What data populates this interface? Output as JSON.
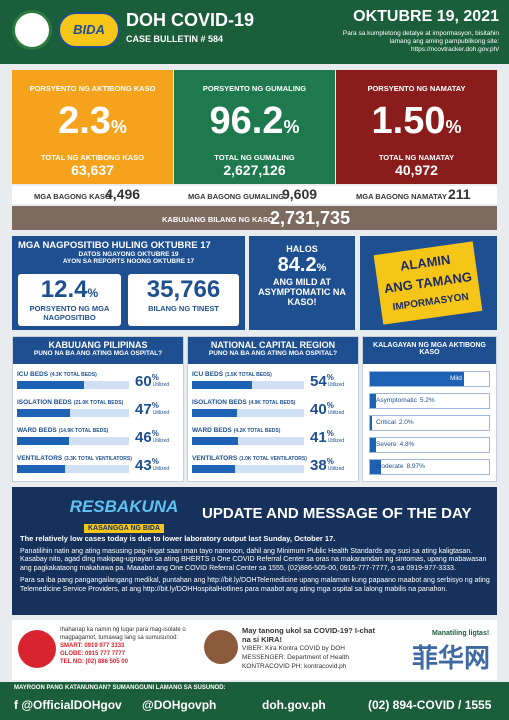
{
  "header": {
    "logo": "BIDA",
    "title": "DOH COVID-19",
    "bulletin": "CASE BULLETIN # 584",
    "date": "OKTUBRE 19, 2021",
    "note": "Para sa kumpletong detalye at impormasyon, bisitahin lamang ang aming pampublikong site: https://ncovtracker.doh.gov.ph/"
  },
  "stats": [
    {
      "label": "PORSYENTO NG AKTIBONG KASO",
      "percent": "2.3",
      "unit": "%",
      "total_label": "TOTAL NG AKTIBONG KASO",
      "total": "63,637"
    },
    {
      "label": "PORSYENTO NG GUMALING",
      "percent": "96.2",
      "unit": "%",
      "total_label": "TOTAL NG GUMALING",
      "total": "2,627,126"
    },
    {
      "label": "PORSYENTO NG NAMATAY",
      "percent": "1.50",
      "unit": "%",
      "total_label": "TOTAL NG NAMATAY",
      "total": "40,972"
    }
  ],
  "new": [
    {
      "label": "MGA BAGONG KASO",
      "value": "4,496"
    },
    {
      "label": "MGA BAGONG GUMALING",
      "value": "9,609"
    },
    {
      "label": "MGA BAGONG NAMATAY",
      "value": "211"
    }
  ],
  "total": {
    "label": "KABUUANG BILANG NG KASO",
    "value": "2,731,735"
  },
  "positivity": {
    "title": "MGA NAGPOSITIBO HULING OKTUBRE 17",
    "sub1": "DATOS NGAYONG OKTUBRE 19",
    "sub2": "AYON SA REPORTS NOONG OKTUBRE 17",
    "rate": "12.4",
    "unit": "%",
    "rate_label": "PORSYENTO NG MGA NAGPOSITIBO",
    "tested": "35,766",
    "tested_label": "BILANG NG TINEST"
  },
  "mild": {
    "lead": "HALOS",
    "value": "84.2",
    "unit": "%",
    "text": "ANG MILD AT ASYMPTOMATIC NA KASO!"
  },
  "alamin": [
    "ALAMIN",
    "ANG TAMANG",
    "IMPORMASYON"
  ],
  "hospitals": [
    {
      "title": "KABUUANG PILIPINAS",
      "subtitle": "PUNO NA BA ANG ATING MGA OSPITAL?",
      "unit": "%",
      "utilized": "Utilized",
      "rows": [
        {
          "name": "ICU BEDS",
          "capacity": "(4.3K TOTAL BEDS)",
          "value": "60"
        },
        {
          "name": "ISOLATION BEDS",
          "capacity": "(21.0K TOTAL BEDS)",
          "value": "47"
        },
        {
          "name": "WARD BEDS",
          "capacity": "(14.9K TOTAL BEDS)",
          "value": "46"
        },
        {
          "name": "VENTILATORS",
          "capacity": "(3.3K TOTAL VENTILATORS)",
          "value": "43"
        }
      ]
    },
    {
      "title": "NATIONAL CAPITAL REGION",
      "subtitle": "PUNO NA BA ANG ATING MGA OSPITAL?",
      "unit": "%",
      "utilized": "Utilized",
      "rows": [
        {
          "name": "ICU BEDS",
          "capacity": "(1.5K TOTAL BEDS)",
          "value": "54"
        },
        {
          "name": "ISOLATION BEDS",
          "capacity": "(4.9K TOTAL BEDS)",
          "value": "40"
        },
        {
          "name": "WARD BEDS",
          "capacity": "(4.2K TOTAL BEDS)",
          "value": "41"
        },
        {
          "name": "VENTILATORS",
          "capacity": "(1.0K TOTAL VENTILATORS)",
          "value": "38"
        }
      ]
    }
  ],
  "severity": {
    "title": "KALAGAYAN NG MGA AKTIBONG KASO",
    "items": [
      {
        "name": "Mild",
        "pct": "79.0%"
      },
      {
        "name": "Asymptomatic",
        "pct": "5.2%"
      },
      {
        "name": "Critical",
        "pct": "2.0%"
      },
      {
        "name": "Severe",
        "pct": "4.8%"
      },
      {
        "name": "Moderate",
        "pct": "8.97%"
      }
    ]
  },
  "message": {
    "logo": "RESBAKUNA",
    "tagline": "KASANGGA NG BIDA",
    "heading": "UPDATE AND MESSAGE OF THE DAY",
    "lead": "The relatively low cases today is due to lower laboratory output last Sunday, October 17.",
    "paragraphs": [
      "Panatilihin natin ang ating masusing pag-iingat saan man tayo naroroon, dahil ang Minimum Public Health Standards ang susi sa ating kaligtasan. Kasabay nito, agad ding makipag-ugnayan sa ating BHERTS o One COVID Referral Center sa oras na makaramdam ng sintomas, upang mabawasan ang pagkakataong makahawa pa. Maaabot ang One COVID Referral Center sa 1555, (02)886-505-00, 0915-777-7777, o sa 0919-977-3333.",
      "Para sa iba pang pangangailangang medikal, puntahan ang http://bit.ly/DOHTelemedicine upang malaman kung papaano maabot ang serbisyo ng ating Telemedicine Service Providers, at ang http://bit.ly/DOHHospitalHotlines para maabot ang ating mga ospital sa lalong mabilis na panahon."
    ]
  },
  "contacts": {
    "isolation": {
      "text": "Ihahanap ka namin ng lugar para mag-isolate o magpagamot, tumawag lang sa sumusunod:",
      "lines": [
        "SMART: 0919 977 3333",
        "GLOBE: 0915 777 7777",
        "TEL NO: (02) 886 505 00"
      ]
    },
    "kira": {
      "text": "May tanong ukol sa COVID-19? I-chat na si KIRA!",
      "lines": [
        "VIBER: Kira Kontra COVID by DOH",
        "MESSENGER: Department of Health",
        "KONTRACOVID PH: kontracovid.ph"
      ]
    },
    "safe": "Manatiling ligtas!"
  },
  "watermark": "菲华网",
  "footer": {
    "ask": "MAYROON PANG KATANUNGAN? SUMANGGUNI LAMANG SA SUSUNOD:",
    "links": [
      "f @OfficialDOHgov",
      "@DOHgovph",
      "doh.gov.ph",
      "(02) 894-COVID / 1555"
    ]
  }
}
